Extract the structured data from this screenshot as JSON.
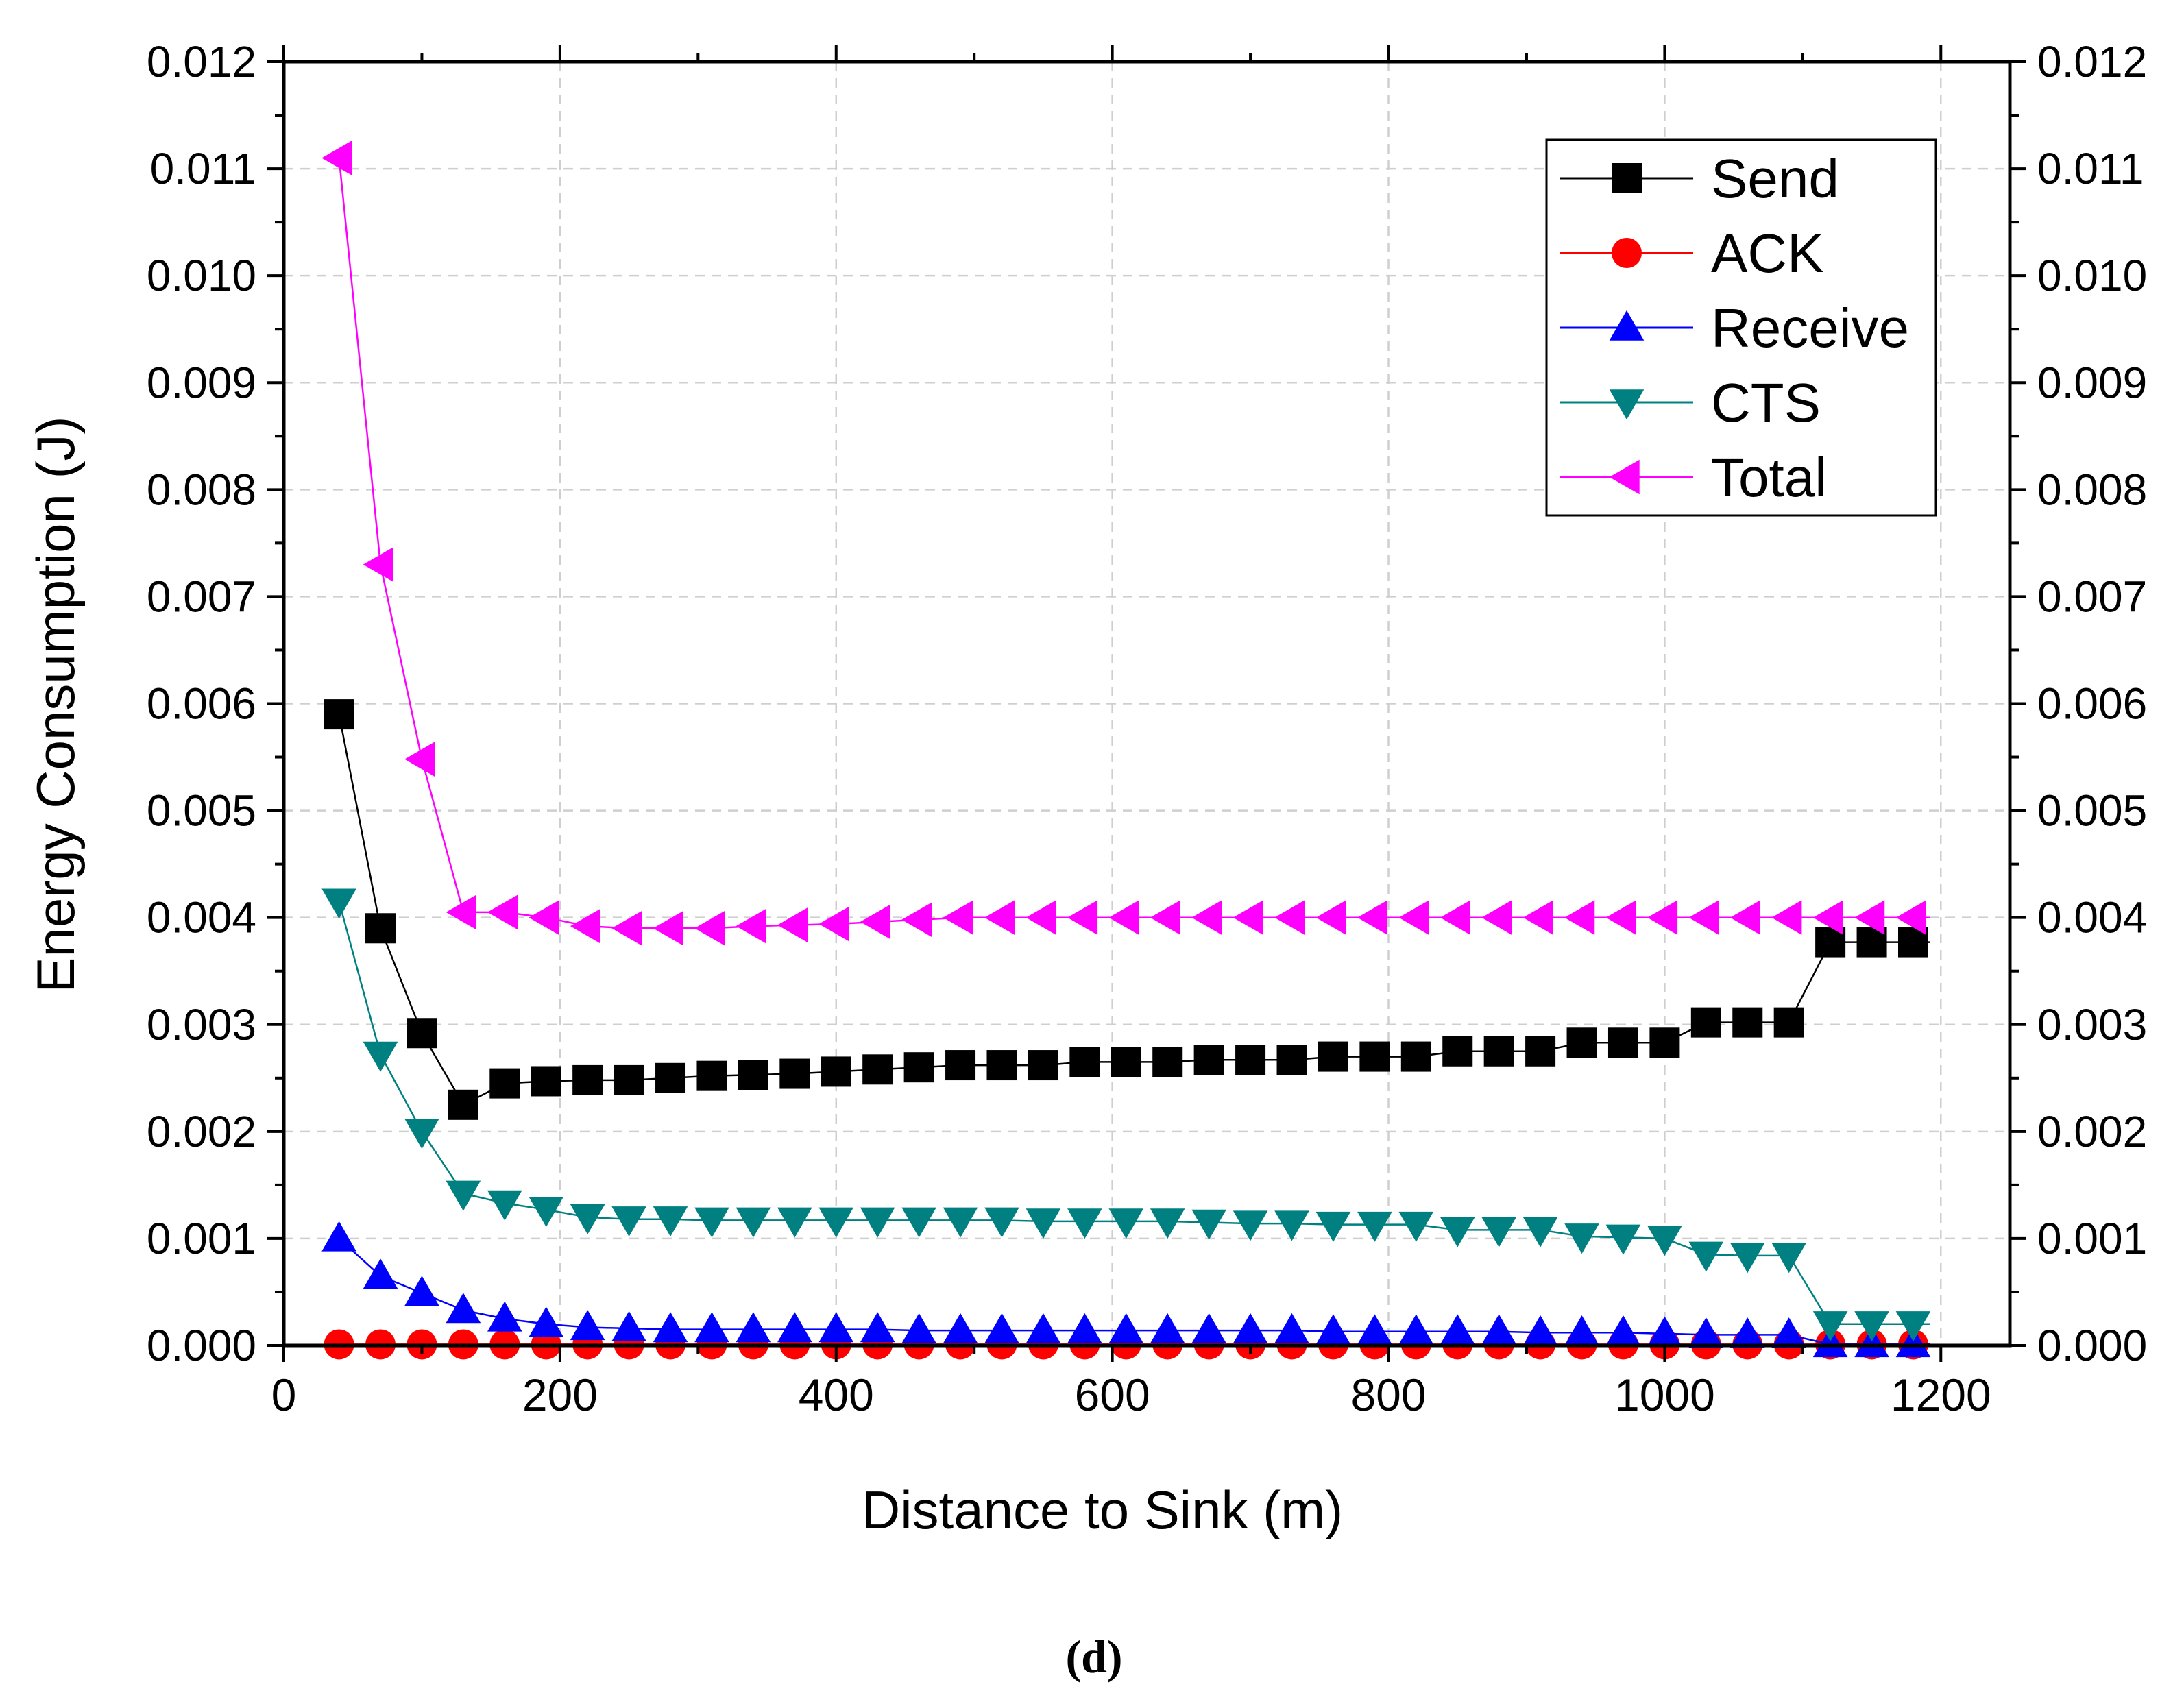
{
  "chart_data": {
    "type": "line",
    "title": "",
    "xlabel": "Distance to Sink (m)",
    "ylabel": "Energy Consumption (J)",
    "panel_label": "(d)",
    "xlim": [
      0,
      1250
    ],
    "ylim": [
      0,
      0.012
    ],
    "x_ticks": [
      0,
      200,
      400,
      600,
      800,
      1000,
      1200
    ],
    "x_tick_labels": [
      "0",
      "200",
      "400",
      "600",
      "800",
      "1000",
      "1200"
    ],
    "y_ticks": [
      0,
      0.001,
      0.002,
      0.003,
      0.004,
      0.005,
      0.006,
      0.007,
      0.008,
      0.009,
      0.01,
      0.011,
      0.012
    ],
    "y_tick_labels": [
      "0.000",
      "0.001",
      "0.002",
      "0.003",
      "0.004",
      "0.005",
      "0.006",
      "0.007",
      "0.008",
      "0.009",
      "0.010",
      "0.011",
      "0.012"
    ],
    "grid": true,
    "legend_position": "top-right",
    "x": [
      40,
      70,
      100,
      130,
      160,
      190,
      220,
      250,
      280,
      310,
      340,
      370,
      400,
      430,
      460,
      490,
      520,
      550,
      580,
      610,
      640,
      670,
      700,
      730,
      760,
      790,
      820,
      850,
      880,
      910,
      940,
      970,
      1000,
      1030,
      1060,
      1090,
      1120,
      1150,
      1180
    ],
    "series": [
      {
        "name": "Send",
        "color": "#000000",
        "marker": "square",
        "values": [
          0.0059,
          0.0039,
          0.00292,
          0.00225,
          0.00245,
          0.00247,
          0.00248,
          0.00248,
          0.0025,
          0.00252,
          0.00253,
          0.00254,
          0.00256,
          0.00258,
          0.0026,
          0.00262,
          0.00262,
          0.00262,
          0.00265,
          0.00265,
          0.00265,
          0.00267,
          0.00267,
          0.00267,
          0.0027,
          0.0027,
          0.0027,
          0.00275,
          0.00275,
          0.00275,
          0.00283,
          0.00283,
          0.00283,
          0.00302,
          0.00302,
          0.00302,
          0.00377,
          0.00377,
          0.00377
        ]
      },
      {
        "name": "ACK",
        "color": "#ff0000",
        "marker": "circle",
        "values": [
          1e-05,
          1e-05,
          1e-05,
          1e-05,
          1e-05,
          1e-05,
          1e-05,
          1e-05,
          1e-05,
          1e-05,
          1e-05,
          1e-05,
          1e-05,
          1e-05,
          1e-05,
          1e-05,
          1e-05,
          1e-05,
          1e-05,
          1e-05,
          1e-05,
          1e-05,
          1e-05,
          1e-05,
          1e-05,
          1e-05,
          1e-05,
          1e-05,
          1e-05,
          1e-05,
          1e-05,
          1e-05,
          1e-05,
          1e-05,
          1e-05,
          1e-05,
          1e-05,
          1e-05,
          1e-05
        ]
      },
      {
        "name": "Receive",
        "color": "#0000ff",
        "marker": "triangle-up",
        "values": [
          0.001,
          0.00065,
          0.00049,
          0.00033,
          0.00025,
          0.0002,
          0.00017,
          0.00016,
          0.00015,
          0.00015,
          0.00015,
          0.00015,
          0.00015,
          0.00015,
          0.00014,
          0.00014,
          0.00014,
          0.00014,
          0.00014,
          0.00014,
          0.00014,
          0.00014,
          0.00014,
          0.00014,
          0.00013,
          0.00013,
          0.00013,
          0.00013,
          0.00013,
          0.00012,
          0.00012,
          0.00012,
          0.00011,
          0.0001,
          0.0001,
          0.0001,
          1e-05,
          1e-05,
          1e-05
        ]
      },
      {
        "name": "CTS",
        "color": "#008080",
        "marker": "triangle-down",
        "values": [
          0.00415,
          0.00272,
          0.002,
          0.00142,
          0.00133,
          0.00127,
          0.0012,
          0.00118,
          0.00118,
          0.00117,
          0.00117,
          0.00117,
          0.00117,
          0.00117,
          0.00117,
          0.00117,
          0.00117,
          0.00116,
          0.00116,
          0.00116,
          0.00116,
          0.00115,
          0.00114,
          0.00114,
          0.00113,
          0.00113,
          0.00113,
          0.00108,
          0.00108,
          0.00108,
          0.00102,
          0.00101,
          0.001,
          0.00085,
          0.00084,
          0.00084,
          0.0002,
          0.0002,
          0.0002
        ]
      },
      {
        "name": "Total",
        "color": "#ff00ff",
        "marker": "triangle-left",
        "values": [
          0.0111,
          0.0073,
          0.00548,
          0.00405,
          0.00405,
          0.004,
          0.00392,
          0.0039,
          0.0039,
          0.0039,
          0.00392,
          0.00393,
          0.00394,
          0.00396,
          0.00398,
          0.004,
          0.004,
          0.004,
          0.004,
          0.004,
          0.004,
          0.004,
          0.004,
          0.004,
          0.004,
          0.004,
          0.004,
          0.004,
          0.004,
          0.004,
          0.004,
          0.004,
          0.004,
          0.004,
          0.004,
          0.004,
          0.004,
          0.004,
          0.004
        ]
      }
    ]
  }
}
